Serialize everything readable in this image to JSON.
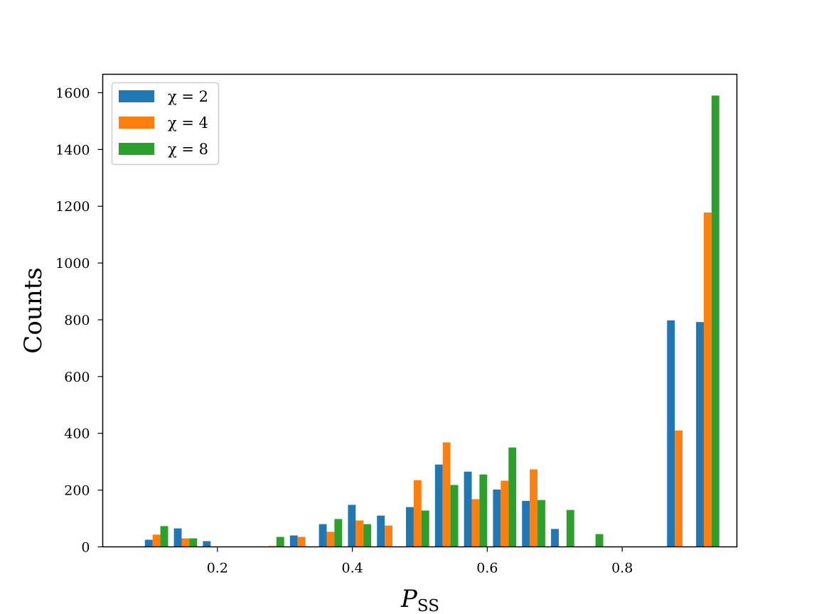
{
  "chart_data": {
    "type": "bar",
    "xlabel_main": "P",
    "xlabel_sub": "SS",
    "ylabel": "Counts",
    "xlim": [
      0.03,
      0.97
    ],
    "ylim": [
      0,
      1665
    ],
    "xticks": [
      0.2,
      0.4,
      0.6,
      0.8
    ],
    "yticks": [
      0,
      200,
      400,
      600,
      800,
      1000,
      1200,
      1400,
      1600
    ],
    "bin_centers": [
      0.1097,
      0.1527,
      0.1957,
      0.2387,
      0.2817,
      0.3247,
      0.3677,
      0.4107,
      0.4537,
      0.4967,
      0.5397,
      0.5827,
      0.6257,
      0.6687,
      0.7117,
      0.7547,
      0.7977,
      0.8407,
      0.8837,
      0.9267
    ],
    "legend_position": "upper-left",
    "grid": false,
    "series": [
      {
        "name": "χ = 2",
        "color": "#1f77b4",
        "values": [
          25,
          65,
          20,
          0,
          0,
          40,
          80,
          148,
          110,
          140,
          290,
          265,
          202,
          162,
          63,
          0,
          0,
          0,
          798,
          792
        ]
      },
      {
        "name": "χ = 4",
        "color": "#ff7f0e",
        "values": [
          43,
          30,
          0,
          0,
          3,
          35,
          53,
          93,
          75,
          235,
          368,
          168,
          233,
          273,
          0,
          0,
          0,
          0,
          410,
          1178
        ]
      },
      {
        "name": "χ = 8",
        "color": "#2ca02c",
        "values": [
          73,
          30,
          0,
          0,
          35,
          0,
          98,
          80,
          0,
          128,
          218,
          255,
          350,
          165,
          130,
          45,
          0,
          0,
          0,
          1590
        ]
      }
    ]
  }
}
